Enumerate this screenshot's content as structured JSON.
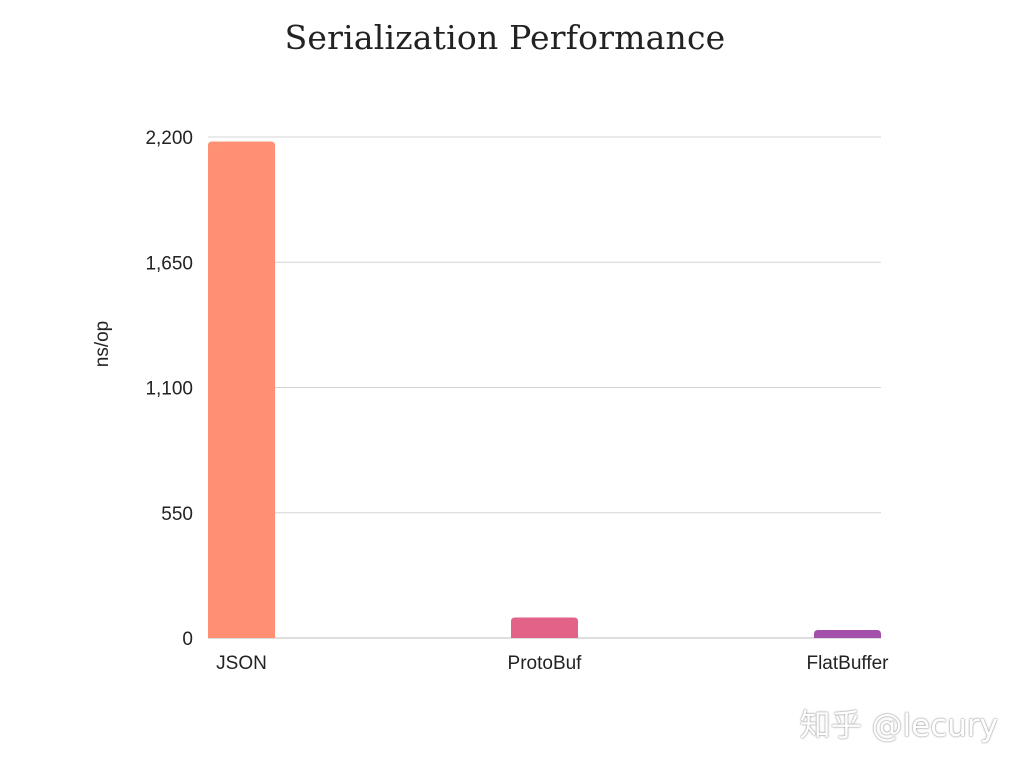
{
  "chart_data": {
    "type": "bar",
    "title": "Serialization Performance",
    "xlabel": "",
    "ylabel": "ns/op",
    "categories": [
      "JSON",
      "ProtoBuf",
      "FlatBuffer"
    ],
    "values": [
      2180,
      90,
      35
    ],
    "colors": [
      "#ff9074",
      "#e26288",
      "#a34fac"
    ],
    "ylim": [
      0,
      2200
    ],
    "yticks": [
      0,
      550,
      1100,
      1650,
      2200
    ],
    "ytick_labels": [
      "0",
      "550",
      "1,100",
      "1,650",
      "2,200"
    ],
    "grid": true,
    "legend": false
  },
  "watermark": "知乎 @lecury"
}
